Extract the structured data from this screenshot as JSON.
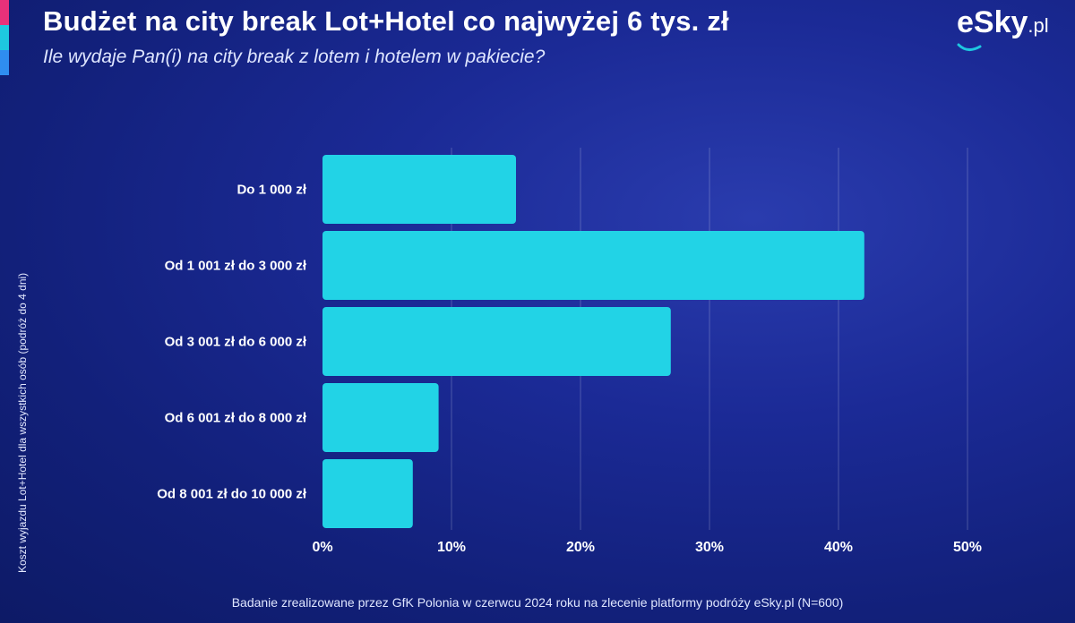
{
  "header": {
    "title": "Budżet na city break Lot+Hotel co najwyżej 6 tys. zł",
    "subtitle": "Ile wydaje Pan(i) na city break z lotem i hotelem w pakiecie?",
    "stripe_colors": [
      "#e8317a",
      "#1ec8e0",
      "#2f8df0"
    ]
  },
  "logo": {
    "brand": "eSky",
    "suffix": ".pl"
  },
  "footnote": "Badanie zrealizowane przez GfK Polonia w czerwcu 2024 roku na zlecenie platformy podróży eSky.pl (N=600)",
  "chart_data": {
    "type": "bar",
    "orientation": "horizontal",
    "title": "",
    "ylabel": "Koszt wyjazdu Lot+Hotel dla wszystkich osób (podróż do 4 dni)",
    "xlabel": "",
    "categories": [
      "Do 1 000 zł",
      "Od 1 001 zł do 3 000 zł",
      "Od 3 001 zł do 6 000 zł",
      "Od 6 001 zł do 8 000 zł",
      "Od 8 001 zł do 10 000 zł"
    ],
    "values": [
      15,
      42,
      27,
      9,
      7
    ],
    "xlim": [
      0,
      50
    ],
    "x_ticks": [
      0,
      10,
      20,
      30,
      40,
      50
    ],
    "x_tick_labels": [
      "0%",
      "10%",
      "20%",
      "30%",
      "40%",
      "50%"
    ],
    "bar_color": "#22d3e6",
    "grid": true
  }
}
